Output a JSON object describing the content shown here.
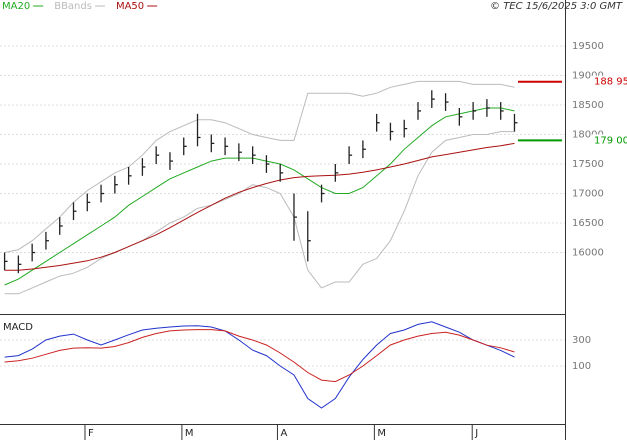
{
  "chart_data": [
    {
      "type": "ohlc",
      "credit": "© TEC 15/6/2025 3:0 GMT",
      "x": [
        1,
        4,
        7,
        10,
        13,
        16,
        19,
        22,
        25,
        28,
        31,
        34,
        37,
        40,
        43,
        46,
        49,
        52,
        55,
        58,
        61,
        64,
        67,
        70,
        73,
        76,
        79,
        82,
        85,
        88,
        91,
        94,
        97,
        100,
        103,
        106,
        109,
        112
      ],
      "high": [
        16000,
        15950,
        16150,
        16350,
        16600,
        16850,
        17000,
        17150,
        17300,
        17450,
        17600,
        17800,
        17700,
        17950,
        18350,
        18000,
        17950,
        17850,
        17800,
        17650,
        17500,
        17000,
        16700,
        17150,
        17500,
        17800,
        17900,
        18350,
        18200,
        18250,
        18550,
        18750,
        18700,
        18450,
        18550,
        18600,
        18550,
        18350
      ],
      "low": [
        15700,
        15650,
        15850,
        16050,
        16300,
        16550,
        16700,
        16850,
        17000,
        17150,
        17300,
        17500,
        17400,
        17650,
        17800,
        17700,
        17650,
        17550,
        17500,
        17350,
        17200,
        16200,
        15850,
        16850,
        17200,
        17500,
        17600,
        18050,
        17900,
        17950,
        18250,
        18450,
        18400,
        18150,
        18250,
        18300,
        18250,
        18050
      ],
      "close": [
        15850,
        15800,
        16000,
        16200,
        16450,
        16700,
        16850,
        17000,
        17150,
        17300,
        17450,
        17650,
        17550,
        17800,
        17950,
        17850,
        17800,
        17700,
        17650,
        17500,
        17350,
        16600,
        16200,
        17000,
        17350,
        17650,
        17750,
        18200,
        18050,
        18100,
        18400,
        18600,
        18550,
        18300,
        18400,
        18450,
        18400,
        18200
      ],
      "bar_color": "#222222",
      "series": [
        {
          "name": "MA20",
          "color": "#22aa22",
          "values": [
            15450,
            15550,
            15700,
            15850,
            16000,
            16150,
            16300,
            16450,
            16600,
            16800,
            16950,
            17100,
            17250,
            17350,
            17450,
            17550,
            17600,
            17600,
            17600,
            17550,
            17500,
            17400,
            17250,
            17100,
            17000,
            17000,
            17100,
            17300,
            17500,
            17750,
            17950,
            18150,
            18300,
            18350,
            18400,
            18450,
            18450,
            18400
          ]
        },
        {
          "name": "BBands",
          "color": "#bbbbbb",
          "upper": [
            16000,
            16050,
            16200,
            16400,
            16600,
            16850,
            17050,
            17200,
            17350,
            17450,
            17650,
            17900,
            18050,
            18150,
            18250,
            18250,
            18200,
            18100,
            18000,
            17950,
            17900,
            17900,
            18700,
            18700,
            18700,
            18700,
            18650,
            18700,
            18800,
            18850,
            18900,
            18900,
            18900,
            18900,
            18850,
            18850,
            18850,
            18800
          ],
          "lower": [
            15300,
            15300,
            15400,
            15500,
            15600,
            15650,
            15750,
            15900,
            16000,
            16100,
            16200,
            16350,
            16500,
            16600,
            16750,
            16800,
            16900,
            17000,
            17150,
            17100,
            17000,
            16600,
            15700,
            15400,
            15500,
            15500,
            15800,
            15900,
            16200,
            16700,
            17300,
            17700,
            17900,
            17950,
            18000,
            18000,
            18050,
            18050
          ]
        },
        {
          "name": "MA50",
          "color": "#aa1111",
          "values": [
            15700,
            15700,
            15720,
            15750,
            15780,
            15820,
            15860,
            15920,
            16000,
            16100,
            16200,
            16300,
            16420,
            16550,
            16680,
            16800,
            16920,
            17020,
            17100,
            17170,
            17230,
            17270,
            17290,
            17300,
            17310,
            17330,
            17360,
            17400,
            17450,
            17500,
            17560,
            17620,
            17660,
            17700,
            17740,
            17780,
            17810,
            17850
          ]
        }
      ],
      "markers": [
        {
          "value": 18895,
          "label": "188 95",
          "color": "#cc0000"
        },
        {
          "value": 17900,
          "label": "179 00",
          "color": "#009900"
        }
      ],
      "xlim": [
        0,
        123
      ],
      "xticks": [
        {
          "value": 18.5,
          "label": "F"
        },
        {
          "value": 39.6,
          "label": "M"
        },
        {
          "value": 60.4,
          "label": "A"
        },
        {
          "value": 81.5,
          "label": "M"
        },
        {
          "value": 102.8,
          "label": "J"
        }
      ],
      "ylim": [
        14975,
        20280
      ],
      "yticks": [
        16000,
        16500,
        17000,
        17500,
        18000,
        18500,
        19000,
        19500
      ],
      "grid": true
    },
    {
      "type": "line",
      "title": "MACD",
      "series": [
        {
          "color": "#2233cc",
          "values": [
            169,
            180,
            230,
            300,
            330,
            346,
            300,
            262,
            300,
            340,
            377,
            390,
            400,
            408,
            410,
            400,
            370,
            300,
            223,
            180,
            100,
            31,
            -150,
            -223,
            -150,
            15,
            150,
            262,
            350,
            377,
            420,
            440,
            400,
            360,
            300,
            260,
            220,
            169
          ]
        },
        {
          "color": "#cc2222",
          "values": [
            131,
            140,
            160,
            190,
            220,
            238,
            240,
            238,
            250,
            280,
            320,
            350,
            370,
            377,
            380,
            380,
            370,
            330,
            300,
            262,
            200,
            130,
            50,
            -8,
            -20,
            31,
            100,
            180,
            262,
            300,
            330,
            350,
            360,
            338,
            300,
            260,
            240,
            208
          ]
        }
      ],
      "ylim": [
        -469,
        485
      ],
      "yticks": [
        100,
        300
      ],
      "grid": true
    }
  ]
}
